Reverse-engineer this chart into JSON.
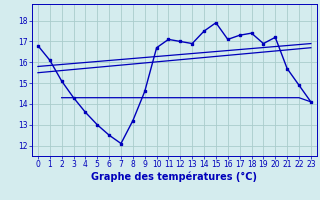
{
  "background_color": "#d4ecee",
  "grid_color": "#aacccc",
  "line_color": "#0000bb",
  "xlabel": "Graphe des températures (°C)",
  "xlabel_fontsize": 7,
  "ylim": [
    11.5,
    18.8
  ],
  "xlim": [
    -0.5,
    23.5
  ],
  "yticks": [
    12,
    13,
    14,
    15,
    16,
    17,
    18
  ],
  "xticks": [
    0,
    1,
    2,
    3,
    4,
    5,
    6,
    7,
    8,
    9,
    10,
    11,
    12,
    13,
    14,
    15,
    16,
    17,
    18,
    19,
    20,
    21,
    22,
    23
  ],
  "series1_x": [
    0,
    1,
    2,
    3,
    4,
    5,
    6,
    7,
    8,
    9,
    10,
    11,
    12,
    13,
    14,
    15,
    16,
    17,
    18,
    19,
    20,
    21,
    22,
    23
  ],
  "series1_y": [
    16.8,
    16.1,
    15.1,
    14.3,
    13.6,
    13.0,
    12.5,
    12.1,
    13.2,
    14.6,
    16.7,
    17.1,
    17.0,
    16.9,
    17.5,
    17.9,
    17.1,
    17.3,
    17.4,
    16.9,
    17.2,
    15.7,
    14.9,
    14.1
  ],
  "series2_x": [
    0,
    23
  ],
  "series2_y": [
    15.8,
    16.9
  ],
  "series3_x": [
    0,
    23
  ],
  "series3_y": [
    15.5,
    16.7
  ],
  "series4_x": [
    2,
    3,
    4,
    5,
    6,
    7,
    8,
    9,
    10,
    11,
    12,
    13,
    14,
    15,
    16,
    17,
    18,
    19,
    20,
    21,
    22,
    23
  ],
  "series4_y": [
    14.3,
    14.3,
    14.3,
    14.3,
    14.3,
    14.3,
    14.3,
    14.3,
    14.3,
    14.3,
    14.3,
    14.3,
    14.3,
    14.3,
    14.3,
    14.3,
    14.3,
    14.3,
    14.3,
    14.3,
    14.3,
    14.1
  ]
}
